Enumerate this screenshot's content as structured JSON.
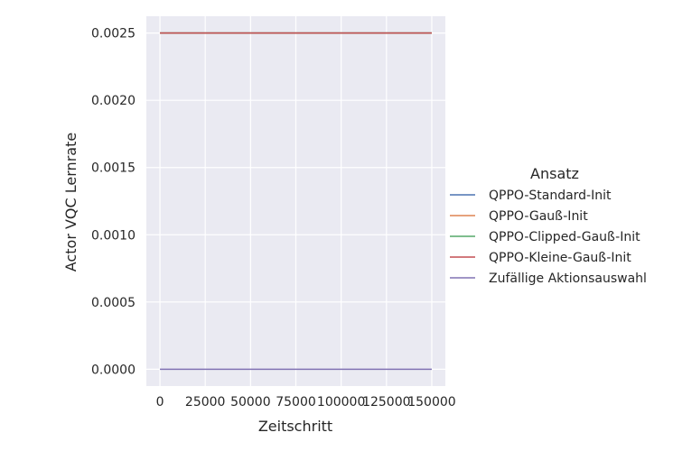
{
  "chart_data": {
    "type": "line",
    "title": "",
    "xlabel": "Zeitschritt",
    "ylabel": "Actor VQC Lernrate",
    "xlim": [
      -7500,
      157500
    ],
    "ylim": [
      -0.000125,
      0.002625
    ],
    "xticks": [
      0,
      25000,
      50000,
      75000,
      100000,
      125000,
      150000
    ],
    "xtick_labels": [
      "0",
      "25000",
      "50000",
      "75000",
      "100000",
      "125000",
      "150000"
    ],
    "yticks": [
      0.0,
      0.0005,
      0.001,
      0.0015,
      0.002,
      0.0025
    ],
    "ytick_labels": [
      "0.0000",
      "0.0005",
      "0.0010",
      "0.0015",
      "0.0020",
      "0.0025"
    ],
    "grid": true,
    "legend_position": "right",
    "legend_title": "Ansatz",
    "series": [
      {
        "name": "QPPO-Standard-Init",
        "color": "#4c72b0",
        "x": [
          0,
          150000
        ],
        "y": [
          0.0025,
          0.0025
        ]
      },
      {
        "name": "QPPO-Gauß-Init",
        "color": "#dd8452",
        "x": [
          0,
          150000
        ],
        "y": [
          0.0025,
          0.0025
        ]
      },
      {
        "name": "QPPO-Clipped-Gauß-Init",
        "color": "#55a868",
        "x": [
          0,
          150000
        ],
        "y": [
          0.0025,
          0.0025
        ]
      },
      {
        "name": "QPPO-Kleine-Gauß-Init",
        "color": "#c44e52",
        "x": [
          0,
          150000
        ],
        "y": [
          0.0025,
          0.0025
        ]
      },
      {
        "name": "Zufällige Aktionsauswahl",
        "color": "#8172b3",
        "x": [
          0,
          150000
        ],
        "y": [
          0.0,
          0.0
        ]
      }
    ],
    "background_color": "#eaeaf2",
    "grid_color": "#ffffff"
  }
}
